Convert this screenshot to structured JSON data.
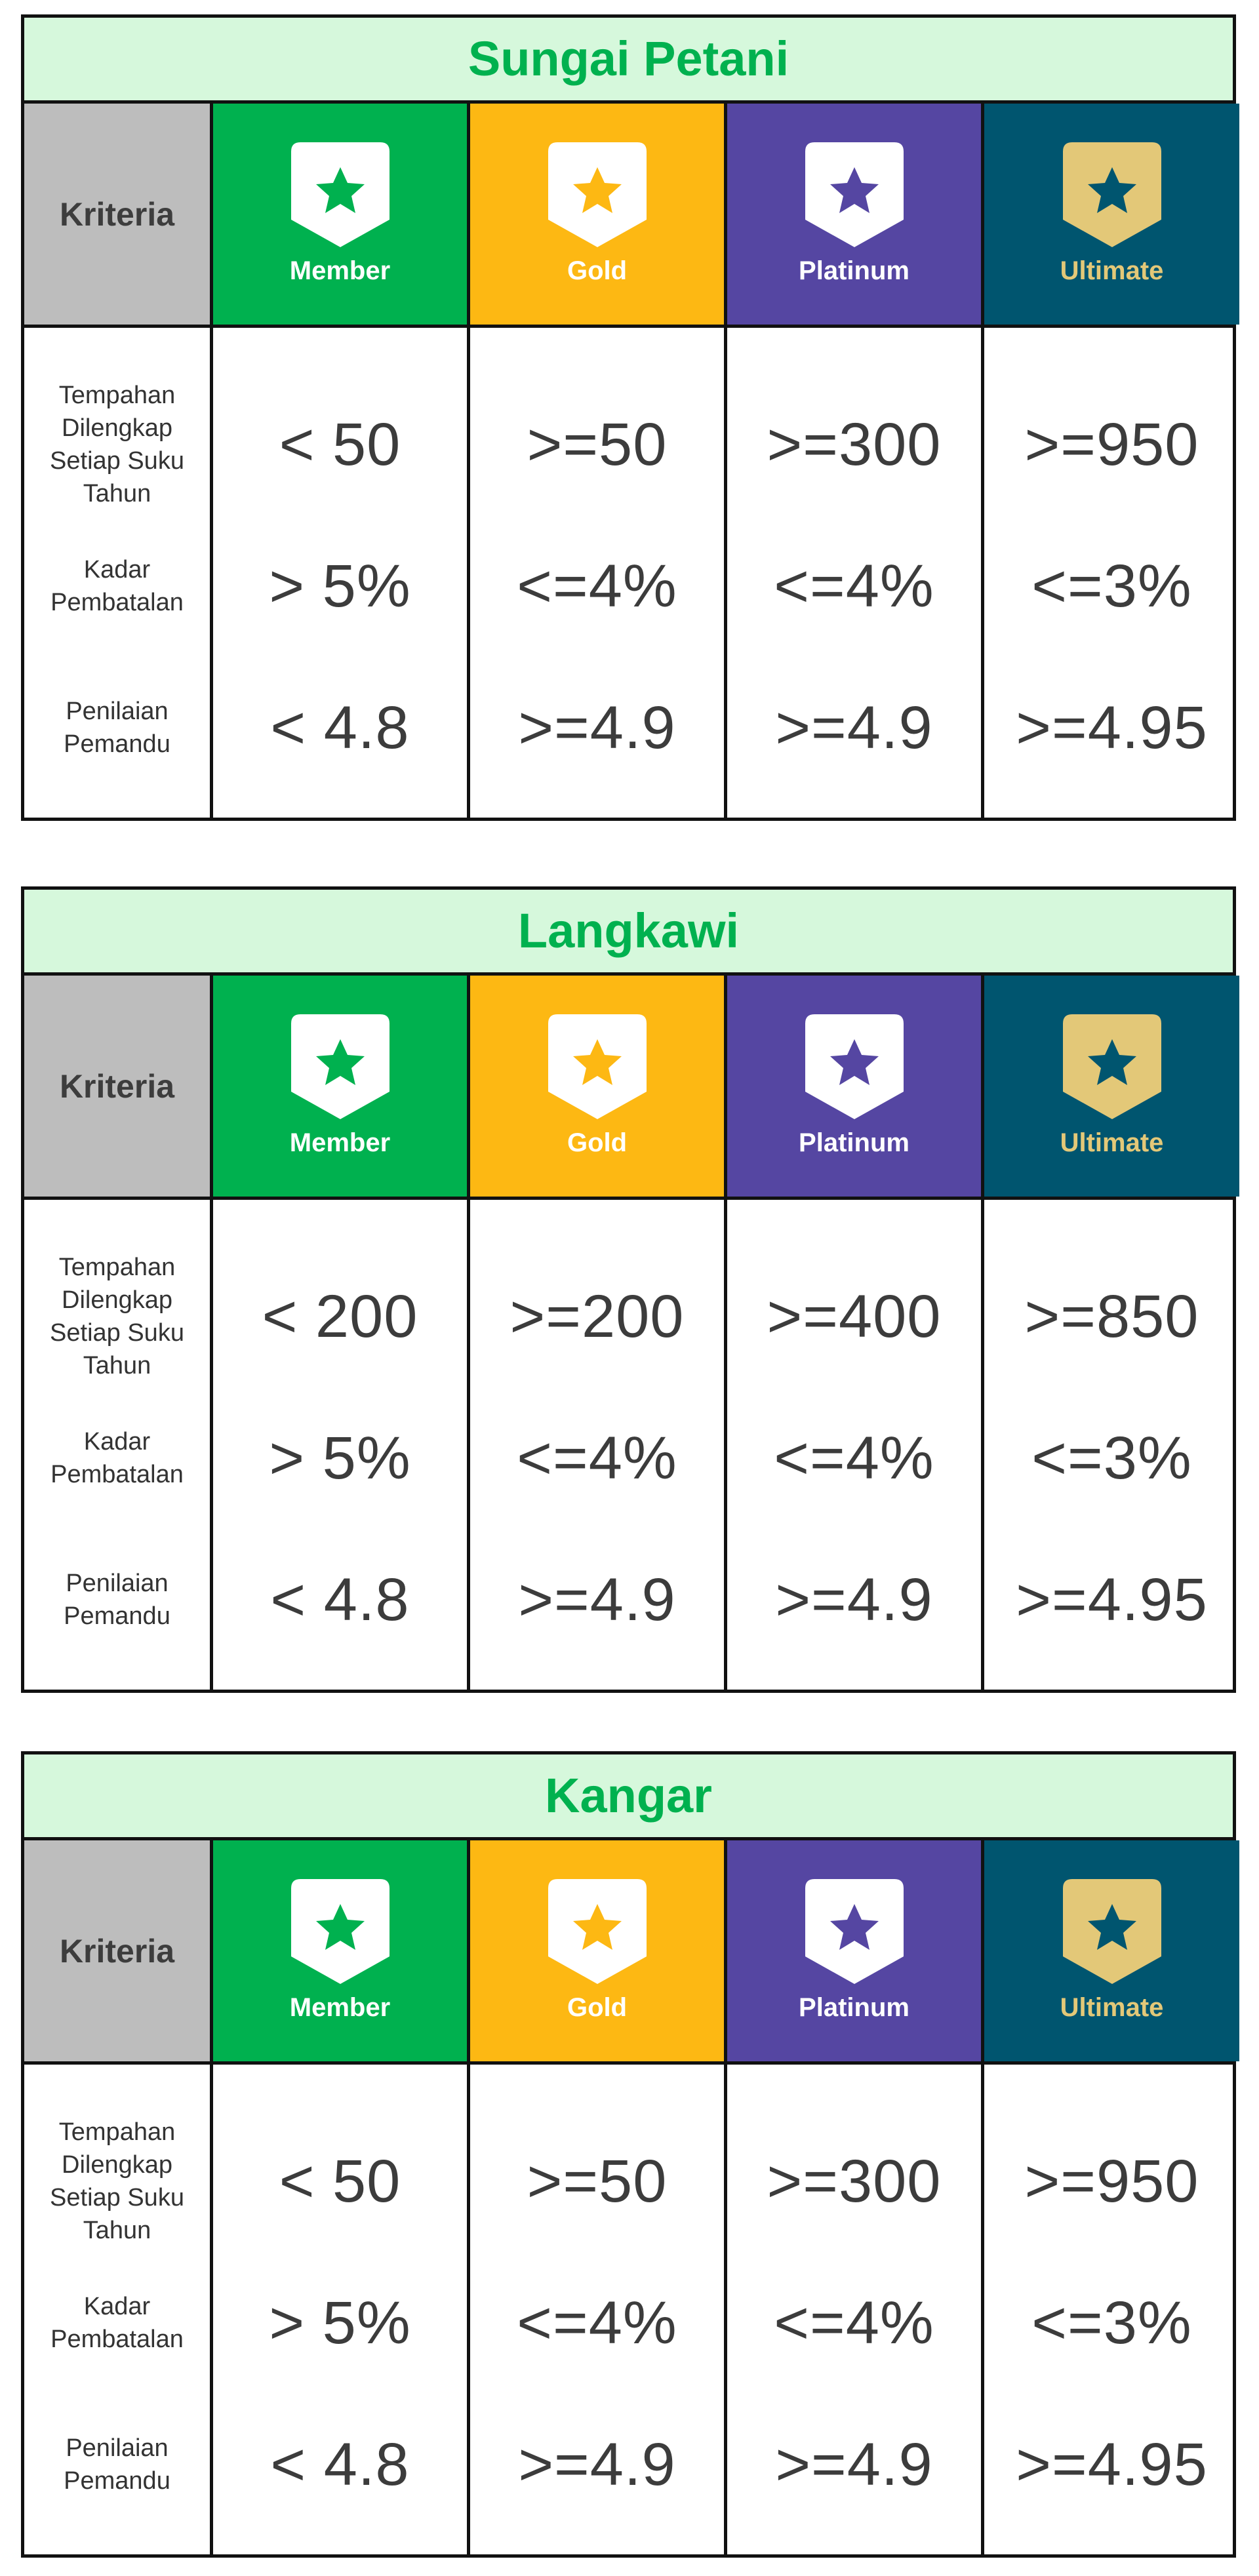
{
  "criteria_header": "Kriteria",
  "tiers": [
    {
      "key": "member",
      "label": "Member",
      "star_color": "#00b14f"
    },
    {
      "key": "gold",
      "label": "Gold",
      "star_color": "#fdb813"
    },
    {
      "key": "platinum",
      "label": "Platinum",
      "star_color": "#5546a2"
    },
    {
      "key": "ultimate",
      "label": "Ultimate",
      "star_color": "#00556f"
    }
  ],
  "criteria": [
    "Tempahan Dilengkap Setiap Suku Tahun",
    "Kadar Pembatalan",
    "Penilaian Pemandu"
  ],
  "tables": [
    {
      "title": "Sungai Petani",
      "rows": [
        [
          "< 50",
          ">=50",
          ">=300",
          ">=950"
        ],
        [
          "> 5%",
          "<=4%",
          "<=4%",
          "<=3%"
        ],
        [
          "< 4.8",
          ">=4.9",
          ">=4.9",
          ">=4.95"
        ]
      ]
    },
    {
      "title": "Langkawi",
      "rows": [
        [
          "< 200",
          ">=200",
          ">=400",
          ">=850"
        ],
        [
          "> 5%",
          "<=4%",
          "<=4%",
          "<=3%"
        ],
        [
          "< 4.8",
          ">=4.9",
          ">=4.9",
          ">=4.95"
        ]
      ]
    },
    {
      "title": "Kangar",
      "rows": [
        [
          "< 50",
          ">=50",
          ">=300",
          ">=950"
        ],
        [
          "> 5%",
          "<=4%",
          "<=4%",
          "<=3%"
        ],
        [
          "< 4.8",
          ">=4.9",
          ">=4.9",
          ">=4.95"
        ]
      ]
    }
  ],
  "colors": {
    "title_bg": "#d6f8dc",
    "title_text": "#00b14f",
    "criteria_bg": "#bdbdbd",
    "badge_bg": "#ffffff",
    "ultimate_badge_bg": "#e3c878"
  }
}
